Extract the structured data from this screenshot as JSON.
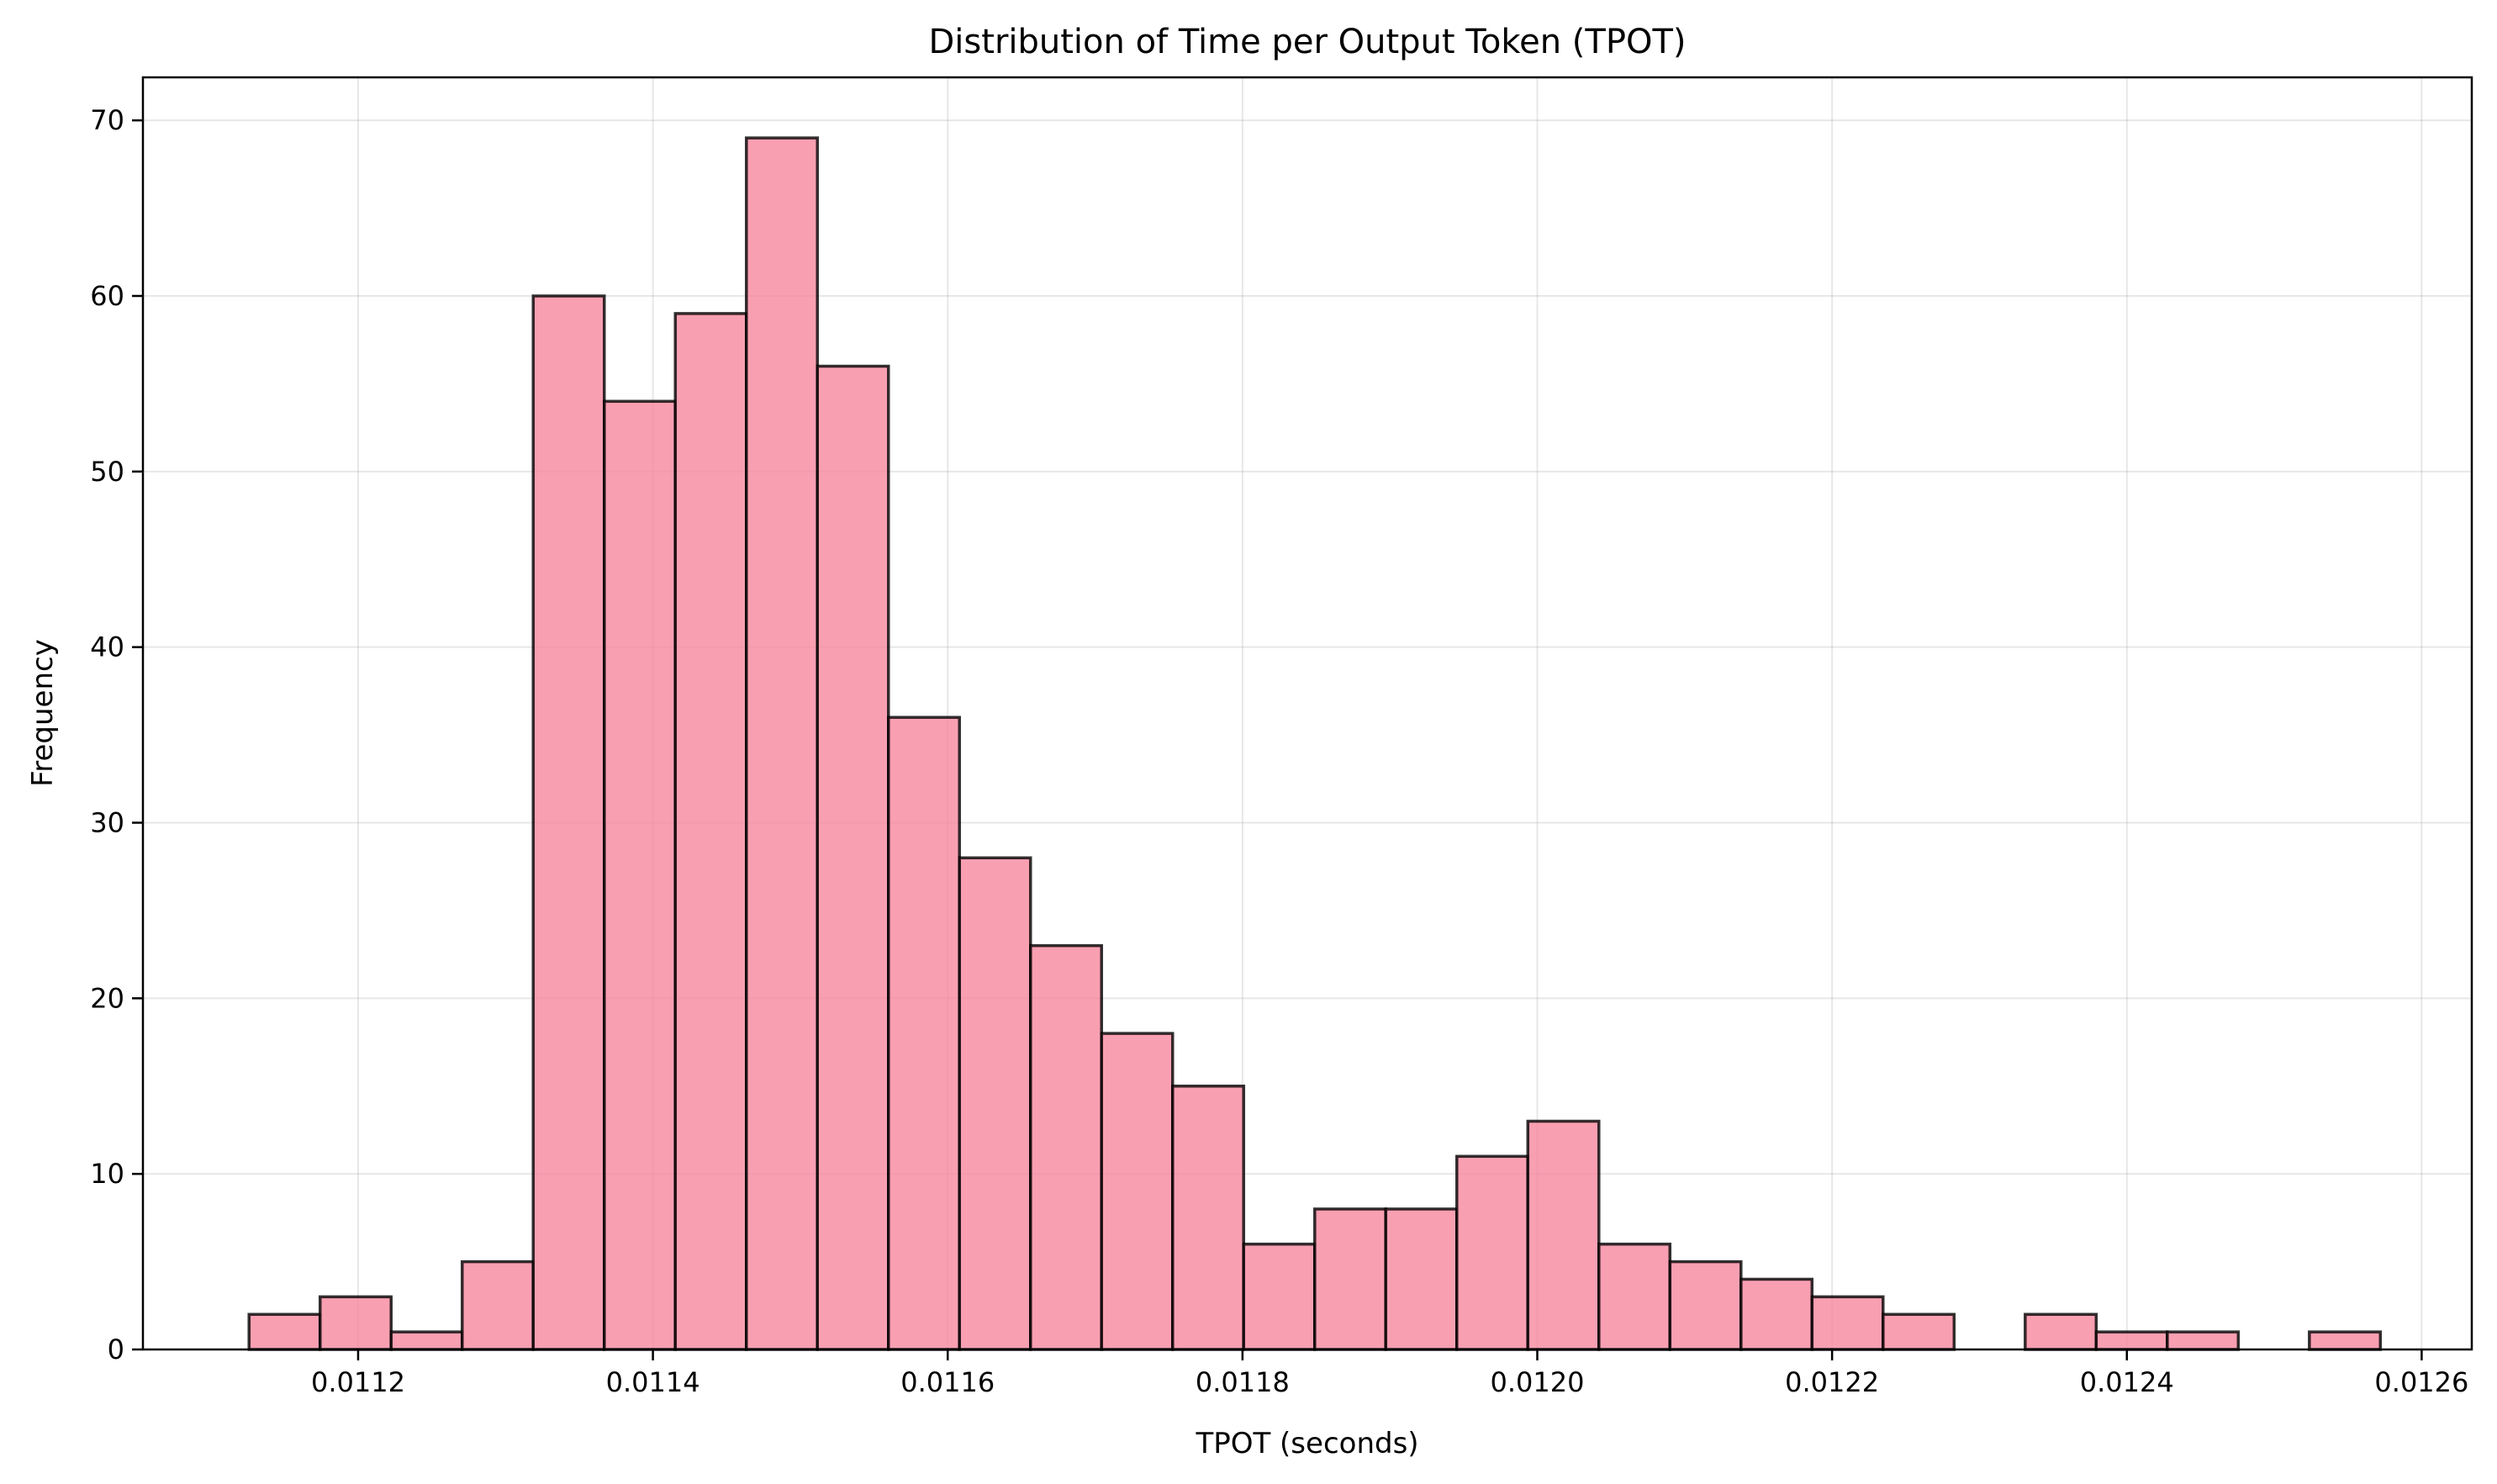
{
  "chart_data": {
    "type": "bar",
    "title": "Distribution of Time per Output Token (TPOT)",
    "xlabel": "TPOT (seconds)",
    "ylabel": "Frequency",
    "grid": true,
    "xlim": [
      0.011054,
      0.012634
    ],
    "ylim": [
      0,
      72.45
    ],
    "x_ticks": [
      0.0112,
      0.0114,
      0.0116,
      0.0118,
      0.012,
      0.0122,
      0.0124,
      0.0126
    ],
    "x_tick_labels": [
      "0.0112",
      "0.0114",
      "0.0116",
      "0.0118",
      "0.0120",
      "0.0122",
      "0.0124",
      "0.0126"
    ],
    "y_ticks": [
      0,
      10,
      20,
      30,
      40,
      50,
      60,
      70
    ],
    "y_tick_labels": [
      "0",
      "10",
      "20",
      "30",
      "40",
      "50",
      "60",
      "70"
    ],
    "bin_start": 0.011126,
    "bin_width": 4.82e-05,
    "counts": [
      2,
      3,
      1,
      5,
      60,
      54,
      59,
      69,
      56,
      36,
      28,
      23,
      18,
      15,
      6,
      8,
      8,
      11,
      13,
      6,
      5,
      4,
      3,
      2,
      0,
      2,
      1,
      1,
      0,
      1
    ],
    "colors": {
      "bar_fill": "#f7879f",
      "bar_edge": "#000000"
    }
  }
}
